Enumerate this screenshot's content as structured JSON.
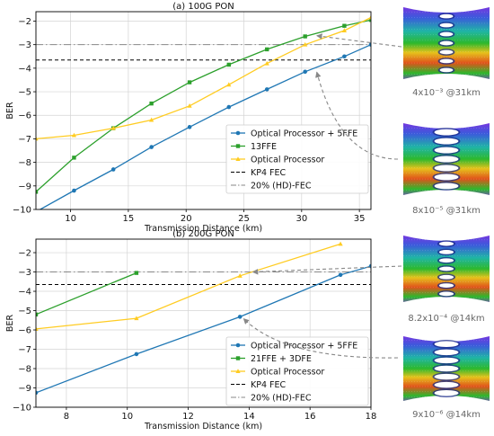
{
  "chart_data": [
    {
      "type": "line",
      "title": "(a) 100G PON",
      "xlabel": "Transmission Distance (km)",
      "ylabel": "BER",
      "xlim": [
        7,
        36
      ],
      "ylim": [
        -10,
        -1.6
      ],
      "xticks": [
        10,
        15,
        20,
        25,
        30,
        35
      ],
      "yticks": [
        -10,
        -9,
        -8,
        -7,
        -6,
        -5,
        -4,
        -3,
        -2
      ],
      "tick_labels_y": [
        "−10",
        "−9",
        "−8",
        "−7",
        "−6",
        "−5",
        "−4",
        "−3",
        "−2"
      ],
      "grid": true,
      "legend_position": "lower-right",
      "series": [
        {
          "name": "Optical Processor + 5FFE",
          "color": "#1f77b4",
          "marker": "circle",
          "x": [
            7,
            10.3,
            13.7,
            17,
            20.3,
            23.7,
            27,
            30.3,
            33.7,
            36
          ],
          "y": [
            -10.1,
            -9.2,
            -8.3,
            -7.35,
            -6.5,
            -5.65,
            -4.9,
            -4.15,
            -3.5,
            -3.0
          ]
        },
        {
          "name": "13FFE",
          "color": "#2ca02c",
          "marker": "square",
          "x": [
            7,
            10.3,
            13.7,
            17,
            20.3,
            23.7,
            27,
            30.3,
            33.7,
            36
          ],
          "y": [
            -9.25,
            -7.8,
            -6.55,
            -5.5,
            -4.6,
            -3.85,
            -3.2,
            -2.65,
            -2.2,
            -1.95
          ]
        },
        {
          "name": "Optical Processor",
          "color": "#ffcc22",
          "marker": "triangle",
          "x": [
            7,
            10.3,
            13.7,
            17,
            20.3,
            23.7,
            27,
            30.3,
            33.7,
            36
          ],
          "y": [
            -7.0,
            -6.85,
            -6.55,
            -6.2,
            -5.6,
            -4.7,
            -3.8,
            -3.0,
            -2.4,
            -1.85
          ]
        }
      ],
      "reference_lines": [
        {
          "name": "KP4 FEC",
          "y": -3.65,
          "style": "dashed",
          "color": "#000000"
        },
        {
          "name": "20% (HD)-FEC",
          "y": -3.0,
          "style": "dashdot",
          "color": "#888888"
        }
      ],
      "insets": [
        {
          "caption": "4x10⁻³ @31km"
        },
        {
          "caption": "8x10⁻⁵ @31km"
        }
      ]
    },
    {
      "type": "line",
      "title": "(b) 200G PON",
      "xlabel": "Transmission Distance (km)",
      "ylabel": "BER",
      "xlim": [
        7,
        18
      ],
      "ylim": [
        -10,
        -1.3
      ],
      "xticks": [
        8,
        10,
        12,
        14,
        16,
        18
      ],
      "yticks": [
        -10,
        -9,
        -8,
        -7,
        -6,
        -5,
        -4,
        -3,
        -2
      ],
      "tick_labels_y": [
        "−10",
        "−9",
        "−8",
        "−7",
        "−6",
        "−5",
        "−4",
        "−3",
        "−2"
      ],
      "grid": true,
      "legend_position": "lower-right",
      "series": [
        {
          "name": "Optical Processor + 5FFE",
          "color": "#1f77b4",
          "marker": "circle",
          "x": [
            7,
            10.3,
            13.7,
            17,
            18
          ],
          "y": [
            -9.25,
            -7.25,
            -5.32,
            -3.15,
            -2.7
          ]
        },
        {
          "name": "21FFE + 3DFE",
          "color": "#2ca02c",
          "marker": "square",
          "x": [
            7,
            10.3
          ],
          "y": [
            -5.2,
            -3.05
          ]
        },
        {
          "name": "Optical Processor",
          "color": "#ffcc22",
          "marker": "triangle",
          "x": [
            7,
            10.3,
            13.7,
            17
          ],
          "y": [
            -5.95,
            -5.4,
            -3.2,
            -1.55
          ]
        }
      ],
      "reference_lines": [
        {
          "name": "KP4 FEC",
          "y": -3.65,
          "style": "dashed",
          "color": "#000000"
        },
        {
          "name": "20% (HD)-FEC",
          "y": -3.0,
          "style": "dashdot",
          "color": "#888888"
        }
      ],
      "insets": [
        {
          "caption": "8.2x10⁻⁴ @14km"
        },
        {
          "caption": "9x10⁻⁶ @14km"
        }
      ]
    }
  ]
}
